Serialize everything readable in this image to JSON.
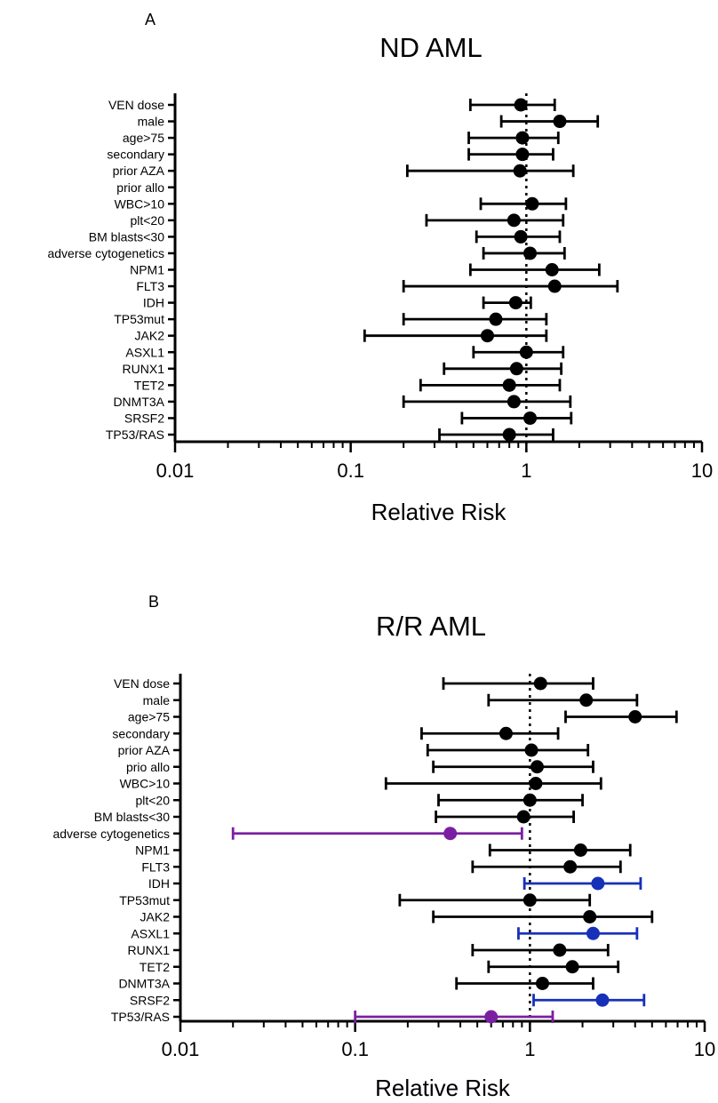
{
  "colors": {
    "default": "#000000",
    "purple": "#7b1fa2",
    "blue": "#1730b8"
  },
  "chart_data": [
    {
      "type": "scatter",
      "panel": "A",
      "title": "ND AML",
      "xlabel": "Relative Risk",
      "xscale": "log",
      "xlim": [
        0.01,
        10
      ],
      "xticks": [
        "0.01",
        "0.1",
        "1",
        "10"
      ],
      "reference_line": 1,
      "rows": [
        {
          "label": "VEN dose",
          "est": 0.93,
          "lo": 0.48,
          "hi": 1.45,
          "color": "default"
        },
        {
          "label": "male",
          "est": 1.55,
          "lo": 0.72,
          "hi": 2.55,
          "color": "default"
        },
        {
          "label": "age>75",
          "est": 0.95,
          "lo": 0.47,
          "hi": 1.52,
          "color": "default"
        },
        {
          "label": "secondary",
          "est": 0.95,
          "lo": 0.47,
          "hi": 1.42,
          "color": "default"
        },
        {
          "label": "prior AZA",
          "est": 0.92,
          "lo": 0.21,
          "hi": 1.85,
          "color": "default"
        },
        {
          "label": "prior allo",
          "est": null,
          "lo": null,
          "hi": null,
          "color": "default"
        },
        {
          "label": "WBC>10",
          "est": 1.08,
          "lo": 0.55,
          "hi": 1.68,
          "color": "default"
        },
        {
          "label": "plt<20",
          "est": 0.85,
          "lo": 0.27,
          "hi": 1.62,
          "color": "default"
        },
        {
          "label": "BM blasts<30",
          "est": 0.93,
          "lo": 0.52,
          "hi": 1.55,
          "color": "default"
        },
        {
          "label": "adverse cytogenetics",
          "est": 1.05,
          "lo": 0.57,
          "hi": 1.65,
          "color": "default"
        },
        {
          "label": "NPM1",
          "est": 1.4,
          "lo": 0.48,
          "hi": 2.6,
          "color": "default"
        },
        {
          "label": "FLT3",
          "est": 1.45,
          "lo": 0.2,
          "hi": 3.3,
          "color": "default"
        },
        {
          "label": "IDH",
          "est": 0.87,
          "lo": 0.57,
          "hi": 1.06,
          "color": "default"
        },
        {
          "label": "TP53mut",
          "est": 0.67,
          "lo": 0.2,
          "hi": 1.3,
          "color": "default"
        },
        {
          "label": "JAK2",
          "est": 0.6,
          "lo": 0.12,
          "hi": 1.3,
          "color": "default"
        },
        {
          "label": "ASXL1",
          "est": 1.0,
          "lo": 0.5,
          "hi": 1.62,
          "color": "default"
        },
        {
          "label": "RUNX1",
          "est": 0.88,
          "lo": 0.34,
          "hi": 1.58,
          "color": "default"
        },
        {
          "label": "TET2",
          "est": 0.8,
          "lo": 0.25,
          "hi": 1.55,
          "color": "default"
        },
        {
          "label": "DNMT3A",
          "est": 0.85,
          "lo": 0.2,
          "hi": 1.78,
          "color": "default"
        },
        {
          "label": "SRSF2",
          "est": 1.05,
          "lo": 0.43,
          "hi": 1.8,
          "color": "default"
        },
        {
          "label": "TP53/RAS",
          "est": 0.8,
          "lo": 0.32,
          "hi": 1.42,
          "color": "default"
        }
      ]
    },
    {
      "type": "scatter",
      "panel": "B",
      "title": "R/R AML",
      "xlabel": "Relative Risk",
      "xscale": "log",
      "xlim": [
        0.01,
        10
      ],
      "xticks": [
        "0.01",
        "0.1",
        "1",
        "10"
      ],
      "reference_line": 1,
      "rows": [
        {
          "label": "VEN dose",
          "est": 1.15,
          "lo": 0.32,
          "hi": 2.3,
          "color": "default"
        },
        {
          "label": "male",
          "est": 2.1,
          "lo": 0.58,
          "hi": 4.1,
          "color": "default"
        },
        {
          "label": "age>75",
          "est": 4.0,
          "lo": 1.6,
          "hi": 6.9,
          "color": "default"
        },
        {
          "label": "secondary",
          "est": 0.73,
          "lo": 0.24,
          "hi": 1.45,
          "color": "default"
        },
        {
          "label": "prior AZA",
          "est": 1.02,
          "lo": 0.26,
          "hi": 2.15,
          "color": "default"
        },
        {
          "label": "prio allo",
          "est": 1.1,
          "lo": 0.28,
          "hi": 2.3,
          "color": "default"
        },
        {
          "label": "WBC>10",
          "est": 1.08,
          "lo": 0.15,
          "hi": 2.55,
          "color": "default"
        },
        {
          "label": "plt<20",
          "est": 1.0,
          "lo": 0.3,
          "hi": 2.0,
          "color": "default"
        },
        {
          "label": "BM blasts<30",
          "est": 0.92,
          "lo": 0.29,
          "hi": 1.78,
          "color": "default"
        },
        {
          "label": "adverse cytogenetics",
          "est": 0.35,
          "lo": 0.02,
          "hi": 0.9,
          "color": "purple"
        },
        {
          "label": "NPM1",
          "est": 1.95,
          "lo": 0.59,
          "hi": 3.75,
          "color": "default"
        },
        {
          "label": "FLT3",
          "est": 1.7,
          "lo": 0.47,
          "hi": 3.3,
          "color": "default"
        },
        {
          "label": "IDH",
          "est": 2.45,
          "lo": 0.93,
          "hi": 4.3,
          "color": "blue"
        },
        {
          "label": "TP53mut",
          "est": 1.0,
          "lo": 0.18,
          "hi": 2.2,
          "color": "default"
        },
        {
          "label": "JAK2",
          "est": 2.2,
          "lo": 0.28,
          "hi": 5.0,
          "color": "default"
        },
        {
          "label": "ASXL1",
          "est": 2.3,
          "lo": 0.86,
          "hi": 4.1,
          "color": "blue"
        },
        {
          "label": "RUNX1",
          "est": 1.48,
          "lo": 0.47,
          "hi": 2.8,
          "color": "default"
        },
        {
          "label": "TET2",
          "est": 1.75,
          "lo": 0.58,
          "hi": 3.2,
          "color": "default"
        },
        {
          "label": "DNMT3A",
          "est": 1.18,
          "lo": 0.38,
          "hi": 2.3,
          "color": "default"
        },
        {
          "label": "SRSF2",
          "est": 2.6,
          "lo": 1.05,
          "hi": 4.5,
          "color": "blue"
        },
        {
          "label": "TP53/RAS",
          "est": 0.6,
          "lo": 0.1,
          "hi": 1.35,
          "color": "purple"
        }
      ]
    }
  ]
}
